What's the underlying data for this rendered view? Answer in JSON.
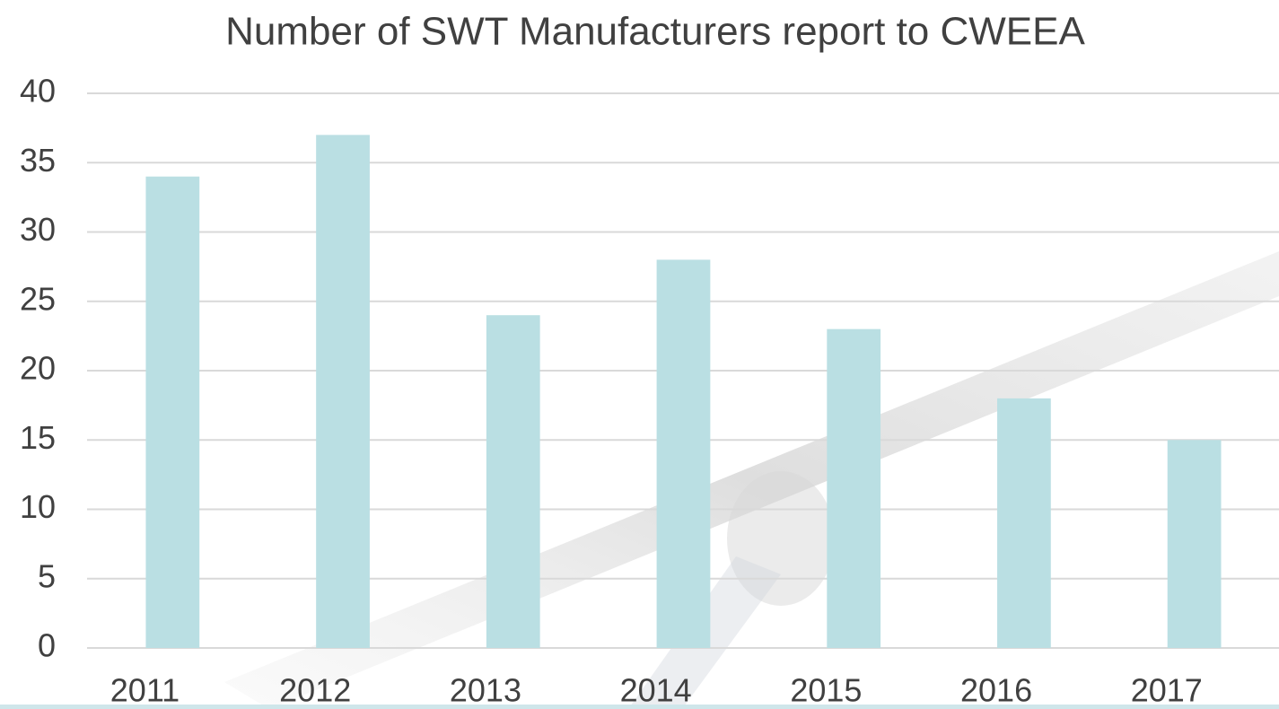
{
  "chart_data": {
    "type": "bar",
    "title": "Number of SWT Manufacturers report to CWEEA",
    "categories": [
      "2011",
      "2012",
      "2013",
      "2014",
      "2015",
      "2016",
      "2017"
    ],
    "values": [
      34,
      37,
      24,
      28,
      23,
      18,
      15
    ],
    "color": "#badfe3",
    "ylim": [
      0,
      40
    ],
    "yticks": [
      0,
      5,
      10,
      15,
      20,
      25,
      30,
      35,
      40
    ],
    "grid": true
  }
}
